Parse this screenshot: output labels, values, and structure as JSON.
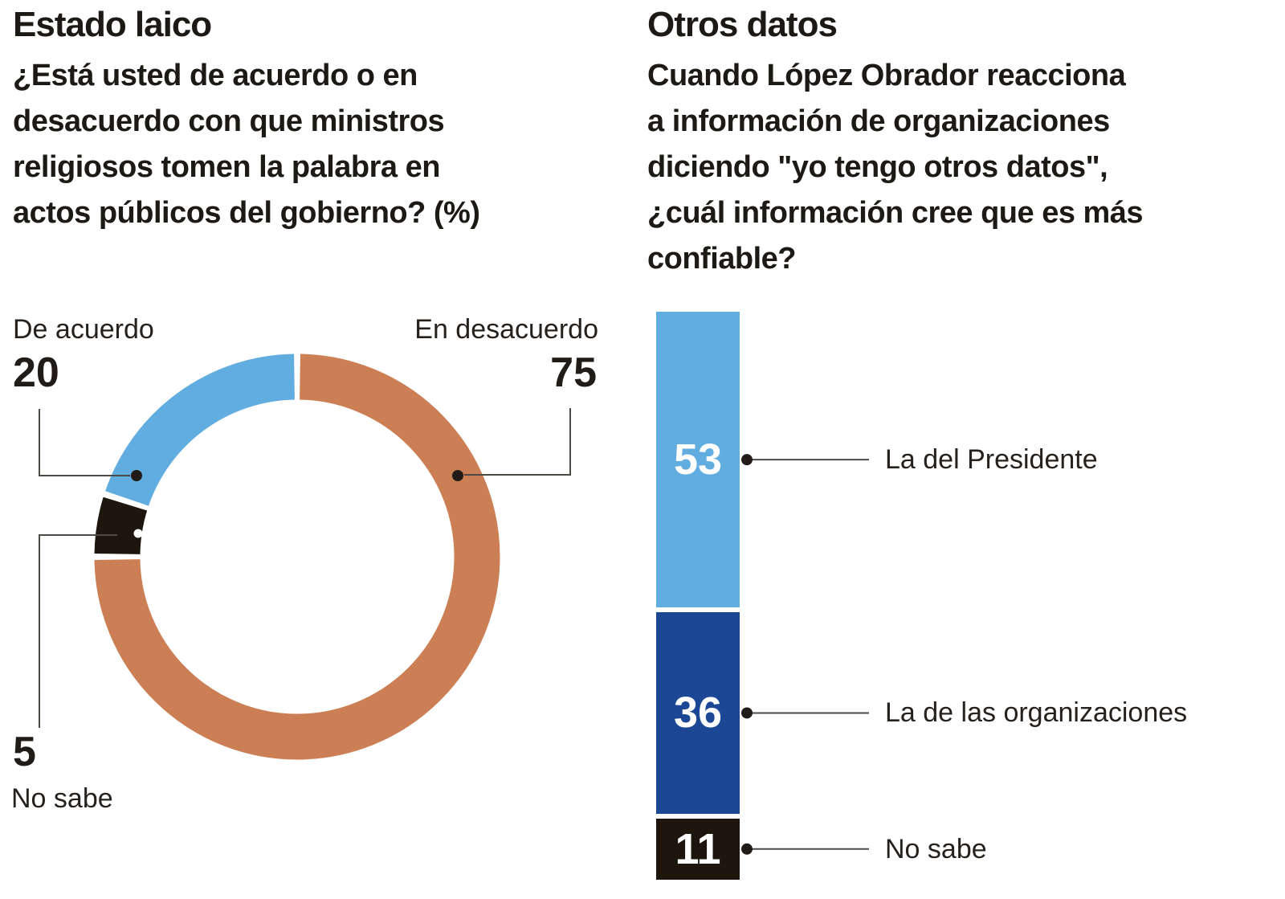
{
  "page": {
    "background": "#ffffff"
  },
  "colors": {
    "text": "#211c18",
    "leader_line": "#4d4a46",
    "light_blue": "#61ade0",
    "orange": "#cc7e54",
    "dark_blue": "#1b4795",
    "ink_black": "#1e150d",
    "white": "#ffffff"
  },
  "chart_data": [
    {
      "type": "donut",
      "title": "Estado laico",
      "question": "¿Está usted de acuerdo o en\ndesacuerdo con que ministros\nreligiosos tomen la palabra en\nactos públicos del gobierno?  (%)",
      "unit": "%",
      "start_angle_deg": 0,
      "direction": "clockwise",
      "slices": [
        {
          "label": "En desacuerdo",
          "value": 75,
          "color": "#cc7e54"
        },
        {
          "label": "No sabe",
          "value": 5,
          "color": "#1e150d"
        },
        {
          "label": "De acuerdo",
          "value": 20,
          "color": "#61ade0"
        }
      ]
    },
    {
      "type": "stacked_bar",
      "title": "Otros datos",
      "question": "Cuando López Obrador reacciona\na información de organizaciones\ndiciendo \"yo tengo otros datos\",\n¿cuál información cree que es más\nconfiable?",
      "unit": "%",
      "orientation": "vertical",
      "segments": [
        {
          "label": "La del Presidente",
          "value": 53,
          "color": "#61ade0",
          "value_text_color": "#ffffff"
        },
        {
          "label": "La de las organizaciones",
          "value": 36,
          "color": "#1b4795",
          "value_text_color": "#ffffff"
        },
        {
          "label": "No sabe",
          "value": 11,
          "color": "#1e150d",
          "value_text_color": "#ffffff"
        }
      ]
    }
  ]
}
